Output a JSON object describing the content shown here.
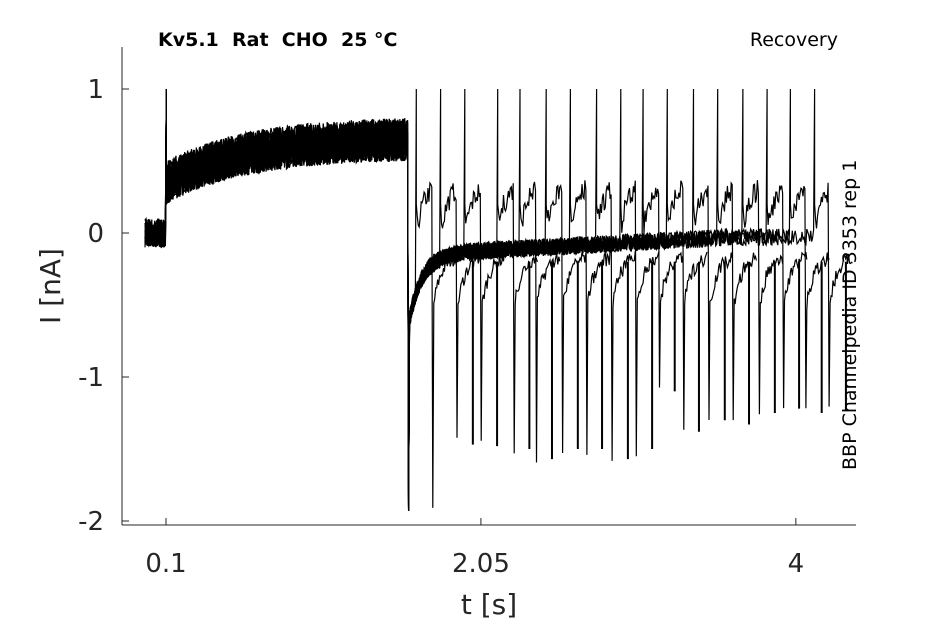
{
  "chart_data": {
    "type": "line",
    "title": "Kv5.1  Rat  CHO  25 °C",
    "subtitle": "Recovery",
    "side_label": "BBP Channelpedia ID 3353 rep 1",
    "xlabel": "t [s]",
    "ylabel": "I [nA]",
    "xlim": [
      -0.17,
      4.37
    ],
    "ylim": [
      -2.05,
      1.3
    ],
    "xticks": [
      0.1,
      2.05,
      4
    ],
    "xtick_labels": [
      "0.1",
      "2.05",
      "4"
    ],
    "yticks": [
      1,
      0,
      -1,
      -2
    ],
    "ytick_labels": [
      "1",
      "0",
      "-1",
      "-2"
    ],
    "grid": false,
    "prepulse": {
      "start": 0.1,
      "end": 1.6,
      "current_start": 0.35,
      "current_end": 0.65
    },
    "test_pulse_starts": [
      1.65,
      1.8,
      1.95,
      2.15,
      2.29,
      2.45,
      2.6,
      2.76,
      2.91,
      3.05,
      3.2,
      3.36,
      3.51,
      3.67,
      3.82,
      3.96,
      4.11
    ],
    "tail_peaks": [
      -1.93,
      -1.47,
      -1.48,
      -1.5,
      -1.57,
      -1.5,
      -1.5,
      -1.57,
      -1.5,
      -1.1,
      -1.38,
      -1.3,
      -1.33,
      -1.25,
      -1.22,
      -1.25,
      -1.23
    ],
    "test_current": 0.35
  }
}
